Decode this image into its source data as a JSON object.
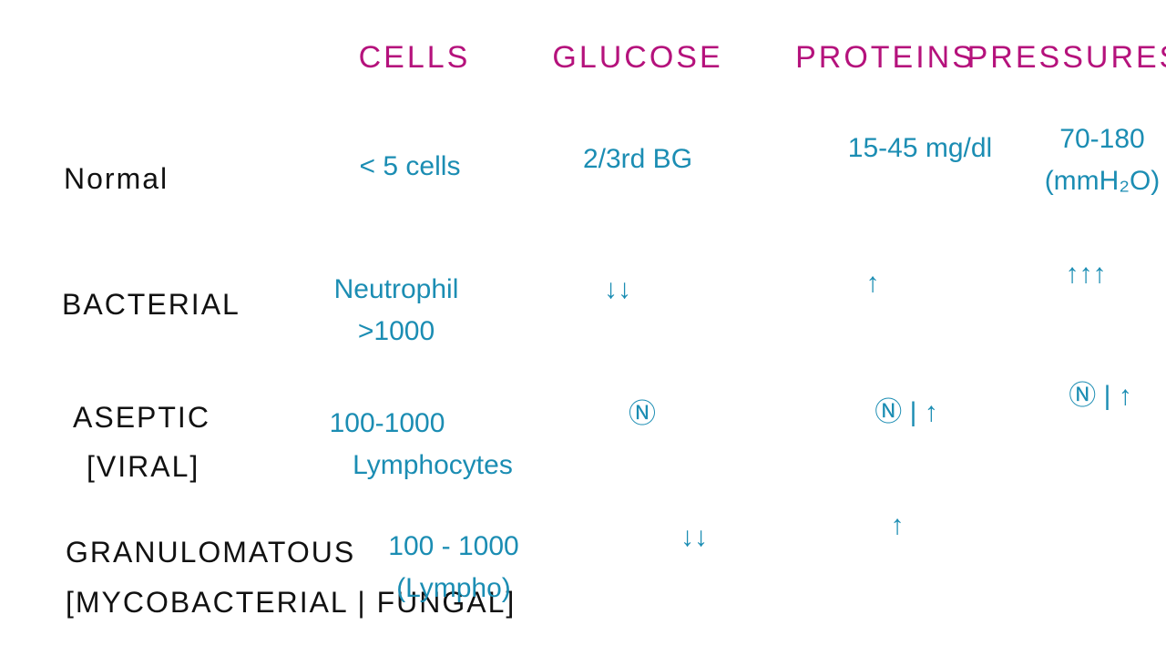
{
  "header": {
    "columns": [
      "CELLS",
      "GLUCOSE",
      "PROTEINS",
      "PRESSURES"
    ]
  },
  "rows": [
    {
      "label": [
        "Normal"
      ],
      "cells": [
        [
          "< 5 cells"
        ],
        [
          "2/3rd BG"
        ],
        [
          "15-45 mg/dl"
        ],
        [
          "70-180",
          "(mmH₂O)"
        ]
      ]
    },
    {
      "label": [
        "BACTERIAL"
      ],
      "cells": [
        [
          "Neutrophil",
          ">1000"
        ],
        [
          "↓↓"
        ],
        [
          "↑"
        ],
        [
          "↑↑↑"
        ]
      ]
    },
    {
      "label": [
        "ASEPTIC",
        "[VIRAL]"
      ],
      "cells": [
        [
          "100-1000",
          "Lymphocytes"
        ],
        [
          "Ⓝ"
        ],
        [
          "Ⓝ | ↑"
        ],
        [
          "Ⓝ | ↑"
        ]
      ]
    },
    {
      "label": [
        "GRANULOMATOUS",
        "[MYCOBACTERIAL | FUNGAL]"
      ],
      "cells": [
        [
          "100 - 1000",
          "(Lympho)"
        ],
        [
          "↓↓"
        ],
        [
          "↑"
        ]
      ]
    }
  ]
}
